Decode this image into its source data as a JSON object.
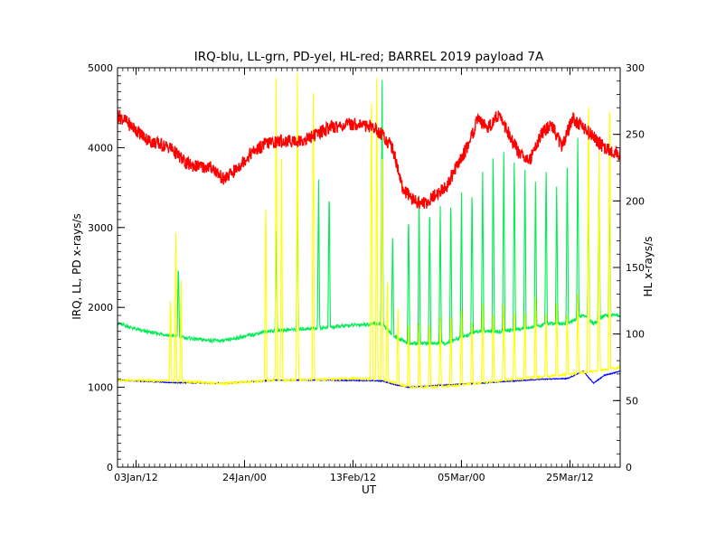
{
  "chart_data": {
    "type": "line",
    "title": "IRQ-blu, LL-grn, PD-yel, HL-red; BARREL 2019 payload 7A",
    "xlabel": "UT",
    "ylabel_left": "IRQ, LL, PD x-rays/s",
    "ylabel_right": "HL x-rays/s",
    "ylim_left": [
      0,
      5000
    ],
    "ylim_right": [
      0,
      300
    ],
    "yticks_left": [
      0,
      1000,
      2000,
      3000,
      4000,
      5000
    ],
    "yticks_right": [
      0,
      50,
      100,
      150,
      200,
      250,
      300
    ],
    "xlim_days": [
      0,
      95
    ],
    "xticks": [
      {
        "label": "03Jan/12",
        "day": 3.5
      },
      {
        "label": "24Jan/00",
        "day": 24.0
      },
      {
        "label": "13Feb/12",
        "day": 44.5
      },
      {
        "label": "05Mar/00",
        "day": 65.0
      },
      {
        "label": "25Mar/12",
        "day": 85.5
      }
    ],
    "grid": false,
    "legend": "none",
    "series": [
      {
        "name": "IRQ",
        "axis": "left",
        "color": "#0000ff",
        "x": [
          0,
          10,
          20,
          30,
          40,
          50,
          52,
          55,
          62,
          68,
          75,
          80,
          85,
          88,
          90,
          92,
          95
        ],
        "y": [
          1090,
          1060,
          1050,
          1090,
          1090,
          1080,
          1040,
          1000,
          1030,
          1050,
          1080,
          1100,
          1110,
          1200,
          1050,
          1150,
          1200
        ]
      },
      {
        "name": "LL",
        "axis": "left",
        "color": "#00ee55",
        "x": [
          0,
          5,
          10,
          15,
          20,
          25,
          28,
          35,
          40,
          45,
          50,
          52,
          55,
          62,
          68,
          73,
          78,
          82,
          85,
          88,
          90,
          92,
          95
        ],
        "y": [
          1800,
          1700,
          1650,
          1600,
          1580,
          1650,
          1700,
          1730,
          1750,
          1780,
          1800,
          1650,
          1550,
          1550,
          1700,
          1700,
          1750,
          1800,
          1800,
          1900,
          1800,
          1900,
          1900
        ]
      },
      {
        "name": "PD",
        "axis": "left",
        "color": "#ffff00",
        "x": [
          0,
          10,
          20,
          30,
          40,
          45,
          48,
          50,
          52,
          55,
          62,
          68,
          75,
          80,
          85,
          90,
          95
        ],
        "y": [
          1090,
          1080,
          1050,
          1090,
          1100,
          1110,
          1100,
          1100,
          1060,
          1000,
          1010,
          1050,
          1100,
          1130,
          1160,
          1200,
          1250
        ]
      },
      {
        "name": "HL",
        "axis": "right",
        "color": "#ff0000",
        "x": [
          0,
          3,
          6,
          10,
          13,
          15,
          18,
          20,
          22,
          25,
          28,
          31,
          35,
          40,
          45,
          48,
          50,
          52,
          54,
          56,
          58,
          62,
          66,
          68,
          70,
          72,
          74,
          76,
          78,
          80,
          82,
          84,
          86,
          88,
          90,
          92,
          95
        ],
        "y": [
          265,
          255,
          245,
          240,
          228,
          226,
          225,
          216,
          222,
          235,
          243,
          245,
          245,
          255,
          258,
          256,
          250,
          240,
          208,
          200,
          198,
          210,
          240,
          260,
          255,
          265,
          250,
          235,
          232,
          250,
          258,
          240,
          262,
          255,
          248,
          240,
          235
        ]
      }
    ],
    "spikes": [
      {
        "series": "LL",
        "days": [
          11.5,
          30,
          34,
          38,
          40,
          50,
          52,
          55,
          57,
          59,
          61,
          63,
          65,
          67,
          69,
          71,
          73,
          75,
          77,
          79,
          81,
          83,
          85,
          87,
          89,
          91,
          93
        ],
        "peaks": [
          2600,
          3000,
          3500,
          3600,
          3600,
          5000,
          3000,
          3300,
          3400,
          3400,
          3300,
          3500,
          3500,
          3600,
          3800,
          4100,
          4100,
          4000,
          3900,
          3700,
          3900,
          3600,
          4000,
          4200,
          3700,
          3800,
          3500
        ]
      },
      {
        "series": "PD",
        "days": [
          10,
          11,
          12,
          28,
          30,
          31,
          34,
          37,
          48,
          49,
          50,
          51,
          53,
          55,
          57,
          59,
          61,
          63,
          65,
          67,
          69,
          71,
          73,
          75,
          77,
          79,
          81,
          83,
          85,
          87,
          89,
          91,
          93
        ],
        "peaks": [
          2200,
          3000,
          2400,
          3500,
          5000,
          4000,
          5000,
          5000,
          5000,
          5000,
          4000,
          2500,
          2000,
          1900,
          1800,
          1900,
          1900,
          2000,
          2000,
          1900,
          2100,
          2000,
          2100,
          2000,
          2000,
          2200,
          2000,
          2100,
          2000,
          2200,
          5000,
          4000,
          5000
        ]
      }
    ]
  }
}
